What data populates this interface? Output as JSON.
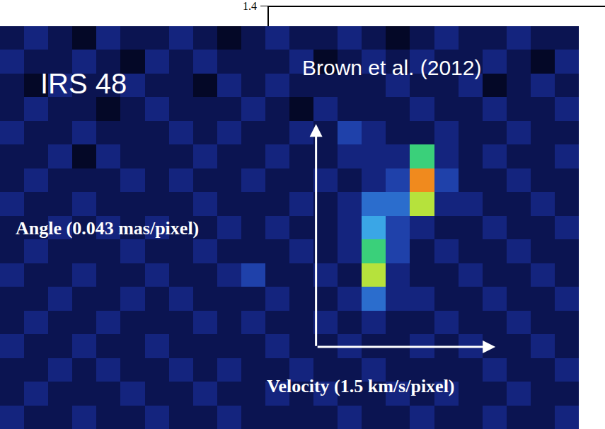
{
  "chart_data": {
    "type": "heatmap",
    "title": "IRS 48",
    "annotations": [
      "Brown et al. (2012)"
    ],
    "y_label": "Angle (0.043 mas/pixel)",
    "x_label": "Velocity (1.5 km/s/pixel)",
    "tick_labels": false,
    "grid": false,
    "zlim": [
      0,
      10
    ],
    "z": [
      [
        2,
        3,
        2,
        1,
        3,
        2,
        2,
        3,
        2,
        1,
        2,
        3,
        2,
        2,
        3,
        2,
        1,
        2,
        3,
        2,
        2,
        3,
        2,
        2
      ],
      [
        3,
        2,
        2,
        3,
        2,
        1,
        3,
        2,
        3,
        2,
        2,
        2,
        3,
        1,
        2,
        3,
        2,
        3,
        2,
        2,
        3,
        2,
        1,
        3
      ],
      [
        2,
        1,
        3,
        2,
        2,
        3,
        2,
        2,
        1,
        3,
        2,
        3,
        2,
        2,
        2,
        2,
        3,
        2,
        2,
        3,
        1,
        2,
        3,
        2
      ],
      [
        2,
        3,
        2,
        2,
        1,
        2,
        3,
        2,
        2,
        2,
        3,
        2,
        1,
        3,
        2,
        2,
        2,
        3,
        2,
        2,
        3,
        2,
        2,
        3
      ],
      [
        3,
        2,
        2,
        3,
        2,
        2,
        2,
        3,
        2,
        3,
        2,
        2,
        3,
        2,
        4,
        3,
        2,
        2,
        3,
        2,
        2,
        3,
        2,
        2
      ],
      [
        2,
        2,
        3,
        1,
        3,
        2,
        2,
        2,
        3,
        2,
        2,
        3,
        2,
        2,
        3,
        3,
        3,
        7,
        3,
        2,
        3,
        2,
        2,
        3
      ],
      [
        2,
        3,
        2,
        2,
        2,
        3,
        2,
        3,
        2,
        2,
        3,
        2,
        2,
        3,
        2,
        3,
        4,
        9,
        4,
        2,
        2,
        3,
        2,
        2
      ],
      [
        3,
        2,
        2,
        3,
        2,
        2,
        2,
        2,
        3,
        2,
        2,
        2,
        3,
        2,
        3,
        5,
        5,
        8,
        3,
        3,
        2,
        2,
        3,
        2
      ],
      [
        2,
        2,
        3,
        2,
        3,
        2,
        3,
        2,
        2,
        3,
        2,
        3,
        2,
        2,
        3,
        6,
        4,
        3,
        2,
        2,
        3,
        2,
        2,
        3
      ],
      [
        2,
        3,
        2,
        2,
        2,
        3,
        2,
        2,
        3,
        2,
        2,
        2,
        3,
        2,
        3,
        7,
        4,
        2,
        3,
        2,
        2,
        3,
        2,
        2
      ],
      [
        3,
        2,
        2,
        3,
        2,
        2,
        3,
        2,
        2,
        3,
        4,
        2,
        2,
        3,
        2,
        8,
        3,
        2,
        2,
        3,
        2,
        2,
        3,
        2
      ],
      [
        2,
        2,
        3,
        2,
        2,
        3,
        2,
        3,
        2,
        2,
        2,
        3,
        2,
        2,
        3,
        5,
        3,
        3,
        2,
        2,
        3,
        2,
        2,
        3
      ],
      [
        2,
        3,
        2,
        2,
        3,
        2,
        2,
        2,
        3,
        2,
        3,
        2,
        2,
        3,
        2,
        3,
        2,
        2,
        3,
        2,
        2,
        3,
        2,
        2
      ],
      [
        3,
        2,
        2,
        3,
        2,
        2,
        3,
        2,
        2,
        2,
        2,
        3,
        2,
        2,
        3,
        2,
        2,
        3,
        2,
        3,
        2,
        2,
        3,
        2
      ],
      [
        2,
        2,
        3,
        2,
        3,
        2,
        2,
        3,
        2,
        3,
        2,
        2,
        3,
        2,
        2,
        3,
        2,
        2,
        2,
        2,
        3,
        2,
        2,
        3
      ],
      [
        2,
        3,
        2,
        2,
        2,
        3,
        2,
        2,
        3,
        2,
        2,
        3,
        2,
        3,
        2,
        2,
        3,
        2,
        3,
        2,
        2,
        3,
        2,
        2
      ],
      [
        3,
        2,
        2,
        3,
        2,
        2,
        3,
        2,
        2,
        3,
        2,
        2,
        2,
        2,
        3,
        2,
        2,
        3,
        2,
        2,
        3,
        2,
        2,
        3
      ]
    ]
  },
  "background_chart": {
    "yticks": [
      1.4
    ]
  }
}
